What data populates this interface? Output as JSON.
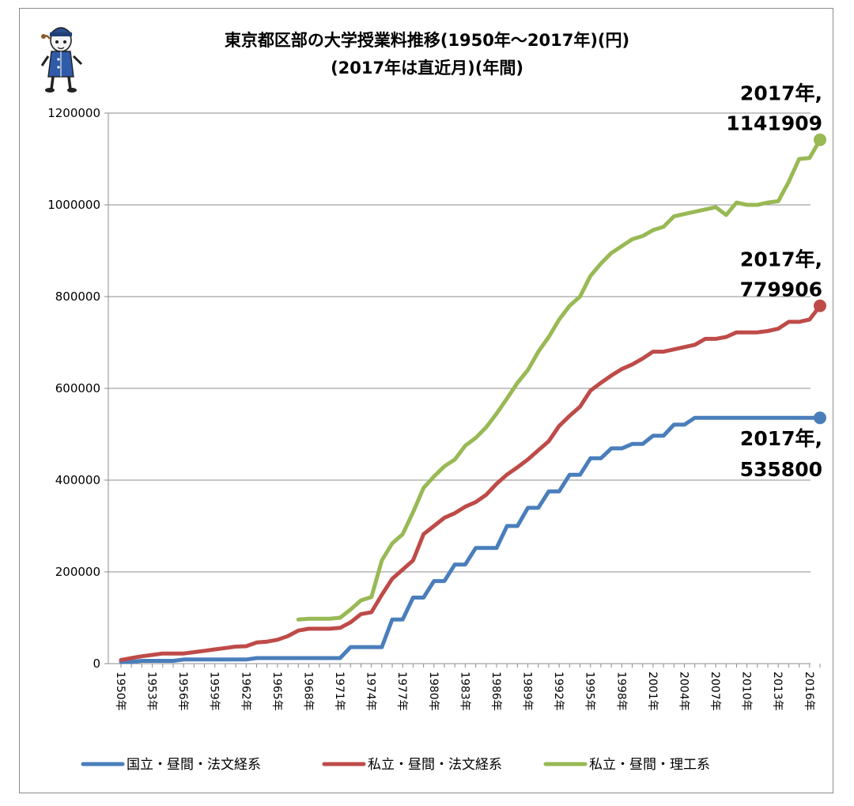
{
  "chart_data": {
    "type": "line",
    "title": "東京都区部の大学授業料推移(1950年～2017年)(円)",
    "subtitle": "(2017年は直近月)(年間)",
    "x_start": 1950,
    "x_end": 2017,
    "x_tick_labels": [
      "1950年",
      "1953年",
      "1956年",
      "1959年",
      "1962年",
      "1965年",
      "1968年",
      "1971年",
      "1974年",
      "1977年",
      "1980年",
      "1983年",
      "1986年",
      "1989年",
      "1992年",
      "1995年",
      "1998年",
      "2001年",
      "2004年",
      "2007年",
      "2010年",
      "2013年",
      "2016年"
    ],
    "ylim": [
      0,
      1200000
    ],
    "y_ticks": [
      0,
      200000,
      400000,
      600000,
      800000,
      1000000,
      1200000
    ],
    "y_tick_labels": [
      "0",
      "200000",
      "400000",
      "600000",
      "800000",
      "1000000",
      "1200000"
    ],
    "grid": true,
    "legend_position": "bottom",
    "series": [
      {
        "name": "国立・昼間・法文経系",
        "color": "#4a7ebb",
        "x": [
          1950,
          1951,
          1952,
          1953,
          1954,
          1955,
          1956,
          1957,
          1958,
          1959,
          1960,
          1961,
          1962,
          1963,
          1964,
          1965,
          1966,
          1967,
          1968,
          1969,
          1970,
          1971,
          1972,
          1973,
          1974,
          1975,
          1976,
          1977,
          1978,
          1979,
          1980,
          1981,
          1982,
          1983,
          1984,
          1985,
          1986,
          1987,
          1988,
          1989,
          1990,
          1991,
          1992,
          1993,
          1994,
          1995,
          1996,
          1997,
          1998,
          1999,
          2000,
          2001,
          2002,
          2003,
          2004,
          2005,
          2006,
          2007,
          2008,
          2009,
          2010,
          2011,
          2012,
          2013,
          2014,
          2015,
          2016,
          2017
        ],
        "values": [
          3600,
          3600,
          6000,
          6000,
          6000,
          6000,
          9000,
          9000,
          9000,
          9000,
          9000,
          9000,
          9000,
          12000,
          12000,
          12000,
          12000,
          12000,
          12000,
          12000,
          12000,
          12000,
          36000,
          36000,
          36000,
          36000,
          96000,
          96000,
          144000,
          144000,
          180000,
          180000,
          216000,
          216000,
          252000,
          252000,
          252000,
          300000,
          300000,
          339600,
          339600,
          375600,
          375600,
          411600,
          411600,
          447600,
          447600,
          469200,
          469200,
          478800,
          478800,
          496800,
          496800,
          520800,
          520800,
          535800,
          535800,
          535800,
          535800,
          535800,
          535800,
          535800,
          535800,
          535800,
          535800,
          535800,
          535800,
          535800
        ]
      },
      {
        "name": "私立・昼間・法文経系",
        "color": "#be4b48",
        "x": [
          1950,
          1951,
          1952,
          1953,
          1954,
          1955,
          1956,
          1957,
          1958,
          1959,
          1960,
          1961,
          1962,
          1963,
          1964,
          1965,
          1966,
          1967,
          1968,
          1969,
          1970,
          1971,
          1972,
          1973,
          1974,
          1975,
          1976,
          1977,
          1978,
          1979,
          1980,
          1981,
          1982,
          1983,
          1984,
          1985,
          1986,
          1987,
          1988,
          1989,
          1990,
          1991,
          1992,
          1993,
          1994,
          1995,
          1996,
          1997,
          1998,
          1999,
          2000,
          2001,
          2002,
          2003,
          2004,
          2005,
          2006,
          2007,
          2008,
          2009,
          2010,
          2011,
          2012,
          2013,
          2014,
          2015,
          2016,
          2017
        ],
        "values": [
          8000,
          12000,
          16000,
          19000,
          22000,
          22000,
          22000,
          25000,
          28000,
          31000,
          34000,
          37000,
          38000,
          46000,
          48000,
          52000,
          60000,
          72000,
          76000,
          76000,
          76000,
          78000,
          90000,
          108000,
          112000,
          150000,
          185000,
          205000,
          225000,
          282000,
          300000,
          318000,
          328000,
          342000,
          352000,
          368000,
          392000,
          412000,
          428000,
          445000,
          465000,
          485000,
          518000,
          540000,
          560000,
          595000,
          612000,
          628000,
          642000,
          652000,
          665000,
          680000,
          680000,
          685000,
          690000,
          695000,
          708000,
          708000,
          712000,
          722000,
          722000,
          722000,
          725000,
          730000,
          745000,
          745000,
          750000,
          779906
        ]
      },
      {
        "name": "私立・昼間・理工系",
        "color": "#98b954",
        "x": [
          1967,
          1968,
          1969,
          1970,
          1971,
          1972,
          1973,
          1974,
          1975,
          1976,
          1977,
          1978,
          1979,
          1980,
          1981,
          1982,
          1983,
          1984,
          1985,
          1986,
          1987,
          1988,
          1989,
          1990,
          1991,
          1992,
          1993,
          1994,
          1995,
          1996,
          1997,
          1998,
          1999,
          2000,
          2001,
          2002,
          2003,
          2004,
          2005,
          2006,
          2007,
          2008,
          2009,
          2010,
          2011,
          2012,
          2013,
          2014,
          2015,
          2016,
          2017
        ],
        "values": [
          96000,
          98000,
          98000,
          98000,
          100000,
          118000,
          138000,
          145000,
          225000,
          262000,
          282000,
          330000,
          383000,
          408000,
          430000,
          445000,
          475000,
          492000,
          515000,
          545000,
          578000,
          612000,
          640000,
          680000,
          712000,
          750000,
          780000,
          800000,
          845000,
          872000,
          895000,
          910000,
          925000,
          932000,
          945000,
          952000,
          975000,
          980000,
          985000,
          990000,
          995000,
          978000,
          1005000,
          1000000,
          1000000,
          1005000,
          1008000,
          1050000,
          1100000,
          1102000,
          1141909
        ]
      }
    ],
    "annotations": [
      {
        "series": 2,
        "line1": "2017年,",
        "line2": "1141909"
      },
      {
        "series": 1,
        "line1": "2017年,",
        "line2": "779906"
      },
      {
        "series": 0,
        "line1": "2017年,",
        "line2": "535800"
      }
    ]
  }
}
